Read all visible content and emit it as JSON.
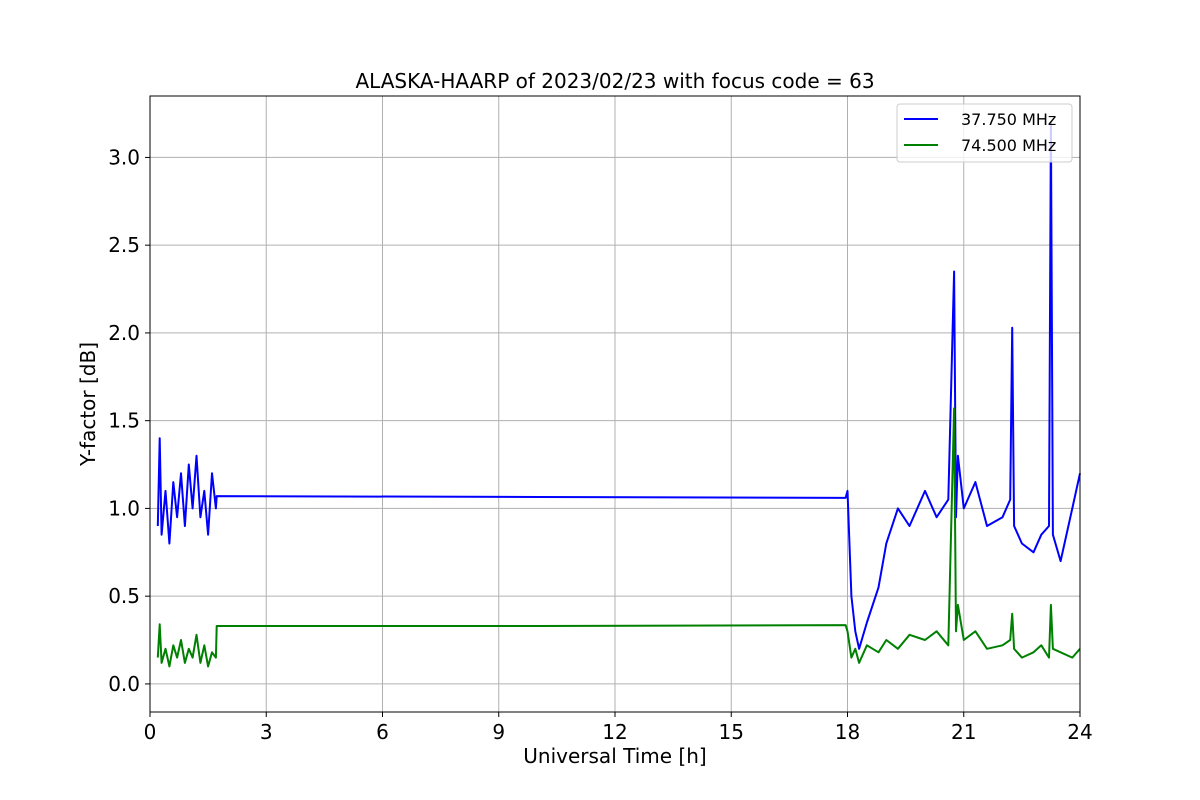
{
  "chart_data": {
    "type": "line",
    "title": "ALASKA-HAARP of 2023/02/23 with focus code = 63",
    "xlabel": "Universal Time [h]",
    "ylabel": "Y-factor [dB]",
    "xlim": [
      0,
      24
    ],
    "ylim": [
      -0.16,
      3.35
    ],
    "xticks": [
      0,
      3,
      6,
      9,
      12,
      15,
      18,
      21,
      24
    ],
    "xtick_labels": [
      "0",
      "3",
      "6",
      "9",
      "12",
      "15",
      "18",
      "21",
      "24"
    ],
    "yticks": [
      0.0,
      0.5,
      1.0,
      1.5,
      2.0,
      2.5,
      3.0
    ],
    "ytick_labels": [
      "0.0",
      "0.5",
      "1.0",
      "1.5",
      "2.0",
      "2.5",
      "3.0"
    ],
    "grid": true,
    "legend_position": "top-right",
    "series": [
      {
        "name": "37.750 MHz",
        "color": "#0000ff",
        "x": [
          0.2,
          0.25,
          0.3,
          0.4,
          0.5,
          0.6,
          0.7,
          0.8,
          0.9,
          1.0,
          1.1,
          1.2,
          1.3,
          1.4,
          1.5,
          1.6,
          1.7,
          1.72,
          10.0,
          17.95,
          18.0,
          18.1,
          18.2,
          18.3,
          18.5,
          18.8,
          19.0,
          19.3,
          19.6,
          20.0,
          20.3,
          20.6,
          20.75,
          20.8,
          20.85,
          21.0,
          21.3,
          21.6,
          22.0,
          22.2,
          22.25,
          22.3,
          22.5,
          22.8,
          23.0,
          23.2,
          23.25,
          23.3,
          23.5,
          23.8,
          24.0
        ],
        "y": [
          0.9,
          1.4,
          0.85,
          1.1,
          0.8,
          1.15,
          0.95,
          1.2,
          0.9,
          1.25,
          1.0,
          1.3,
          0.95,
          1.1,
          0.85,
          1.2,
          1.0,
          1.07,
          1.065,
          1.06,
          1.1,
          0.5,
          0.3,
          0.2,
          0.35,
          0.55,
          0.8,
          1.0,
          0.9,
          1.1,
          0.95,
          1.05,
          2.35,
          0.95,
          1.3,
          1.0,
          1.15,
          0.9,
          0.95,
          1.05,
          2.03,
          0.9,
          0.8,
          0.75,
          0.85,
          0.9,
          3.2,
          0.85,
          0.7,
          1.0,
          1.2
        ]
      },
      {
        "name": "74.500 MHz",
        "color": "#008000",
        "x": [
          0.2,
          0.25,
          0.3,
          0.4,
          0.5,
          0.6,
          0.7,
          0.8,
          0.9,
          1.0,
          1.1,
          1.2,
          1.3,
          1.4,
          1.5,
          1.6,
          1.7,
          1.72,
          10.0,
          17.95,
          18.0,
          18.1,
          18.2,
          18.3,
          18.5,
          18.8,
          19.0,
          19.3,
          19.6,
          20.0,
          20.3,
          20.6,
          20.75,
          20.8,
          20.85,
          21.0,
          21.3,
          21.6,
          22.0,
          22.2,
          22.25,
          22.3,
          22.5,
          22.8,
          23.0,
          23.2,
          23.25,
          23.3,
          23.5,
          23.8,
          24.0
        ],
        "y": [
          0.15,
          0.34,
          0.12,
          0.2,
          0.1,
          0.22,
          0.15,
          0.25,
          0.12,
          0.2,
          0.15,
          0.28,
          0.12,
          0.22,
          0.1,
          0.18,
          0.15,
          0.33,
          0.33,
          0.335,
          0.3,
          0.15,
          0.2,
          0.12,
          0.22,
          0.18,
          0.25,
          0.2,
          0.28,
          0.25,
          0.3,
          0.22,
          1.57,
          0.3,
          0.45,
          0.25,
          0.3,
          0.2,
          0.22,
          0.25,
          0.4,
          0.2,
          0.15,
          0.18,
          0.22,
          0.15,
          0.45,
          0.2,
          0.18,
          0.15,
          0.2
        ]
      }
    ]
  }
}
